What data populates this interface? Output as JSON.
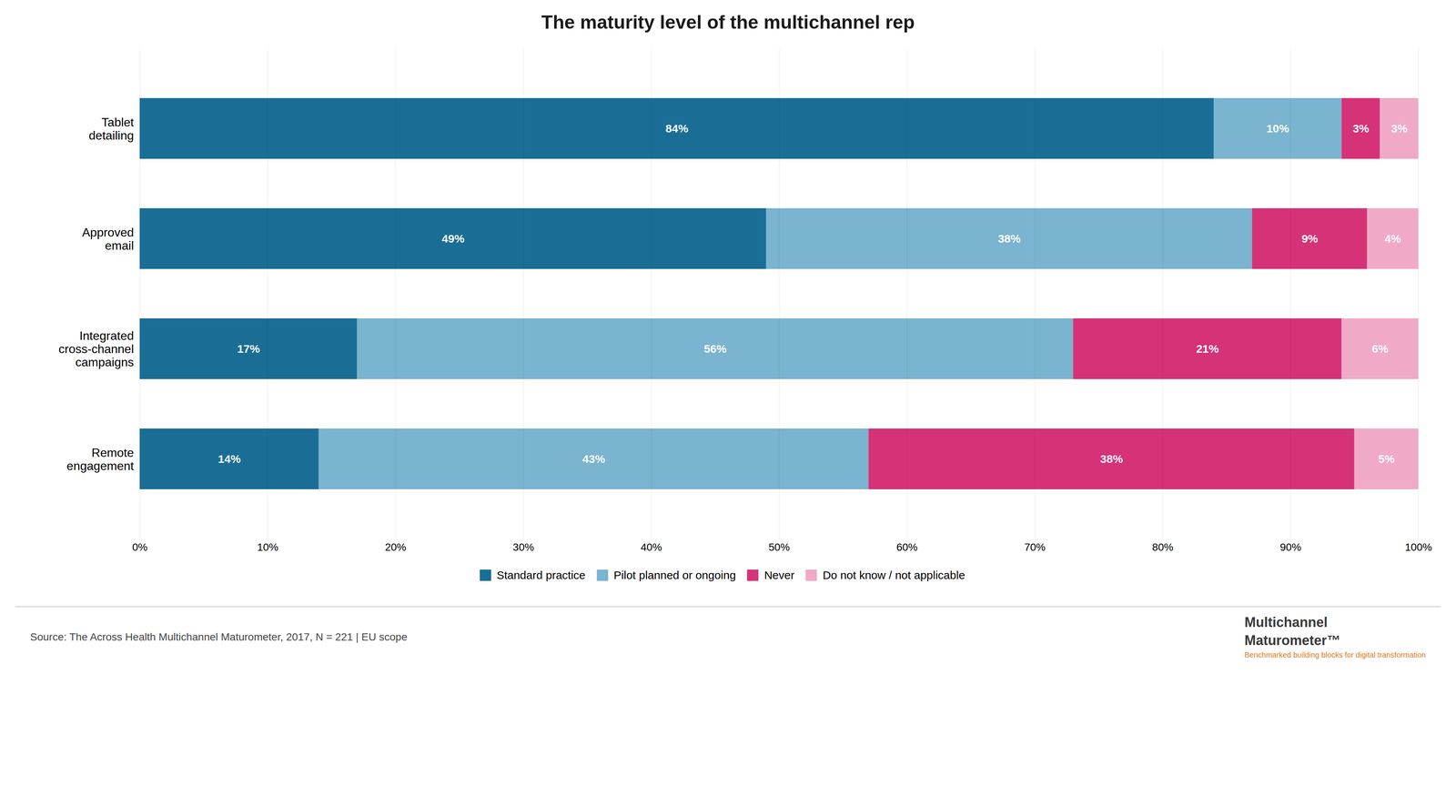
{
  "chart_data": {
    "type": "bar",
    "orientation": "horizontal",
    "stacked": true,
    "data_labels": true,
    "grid": true,
    "legend": "bottom",
    "title": "The maturity level of the multichannel rep",
    "categories": [
      "Remote\nengagement",
      "Integrated\ncross-channel\ncampaigns",
      "Approved\nemail",
      "Tablet\ndetailing"
    ],
    "series": [
      {
        "name": "Standard practice",
        "color": "#1a6e96",
        "values": [
          14,
          17,
          49,
          84
        ],
        "value_labels": [
          "14%",
          "17%",
          "49%",
          "84%"
        ]
      },
      {
        "name": "Pilot planned or ongoing",
        "color": "#7ab4d0",
        "values": [
          43,
          56,
          38,
          10
        ],
        "value_labels": [
          "43%",
          "56%",
          "38%",
          "10%"
        ]
      },
      {
        "name": "Never",
        "color": "#d63278",
        "values": [
          38,
          21,
          9,
          3
        ],
        "value_labels": [
          "38%",
          "21%",
          "9%",
          "3%"
        ]
      },
      {
        "name": "Do not know / not applicable",
        "color": "#f0aac8",
        "values": [
          5,
          6,
          4,
          3
        ],
        "value_labels": [
          "5%",
          "6%",
          "4%",
          "3%"
        ]
      }
    ],
    "xlim": [
      0,
      100
    ],
    "xticks": [
      {
        "value": 0,
        "label": "0%"
      },
      {
        "value": 10,
        "label": "10%"
      },
      {
        "value": 20,
        "label": "20%"
      },
      {
        "value": 30,
        "label": "30%"
      },
      {
        "value": 40,
        "label": "40%"
      },
      {
        "value": 50,
        "label": "50%"
      },
      {
        "value": 60,
        "label": "60%"
      },
      {
        "value": 70,
        "label": "70%"
      },
      {
        "value": 80,
        "label": "80%"
      },
      {
        "value": 90,
        "label": "90%"
      },
      {
        "value": 100,
        "label": "100%"
      }
    ],
    "annotations": [
      "Source: The Across Health Multichannel Maturometer, 2017, N = 221 | EU scope",
      "Multichannel",
      "Maturometer™",
      "Benchmarked building blocks for digital transformation"
    ]
  }
}
